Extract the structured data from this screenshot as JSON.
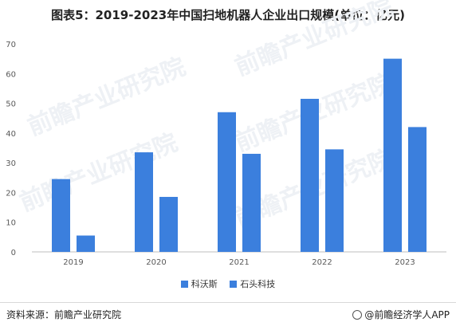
{
  "chart_data": {
    "type": "bar",
    "title": "图表5：2019-2023年中国扫地机器人企业出口规模(单位：亿元)",
    "categories": [
      "2019",
      "2020",
      "2021",
      "2022",
      "2023"
    ],
    "series": [
      {
        "name": "科沃斯",
        "values": [
          24.5,
          33.5,
          47,
          51.5,
          65
        ]
      },
      {
        "name": "石头科技",
        "values": [
          5.5,
          18.5,
          33,
          34.5,
          42
        ]
      }
    ],
    "ylim": [
      0,
      70
    ],
    "yticks": [
      0,
      10,
      20,
      30,
      40,
      50,
      60,
      70
    ],
    "grid": false,
    "legend": "bottom",
    "colors": [
      "#3b7fdd",
      "#3b7fdd"
    ]
  },
  "footer": {
    "source": "资料来源：前瞻产业研究院",
    "credit": "@前瞻经济学人APP"
  },
  "watermark": "前瞻产业研究院"
}
